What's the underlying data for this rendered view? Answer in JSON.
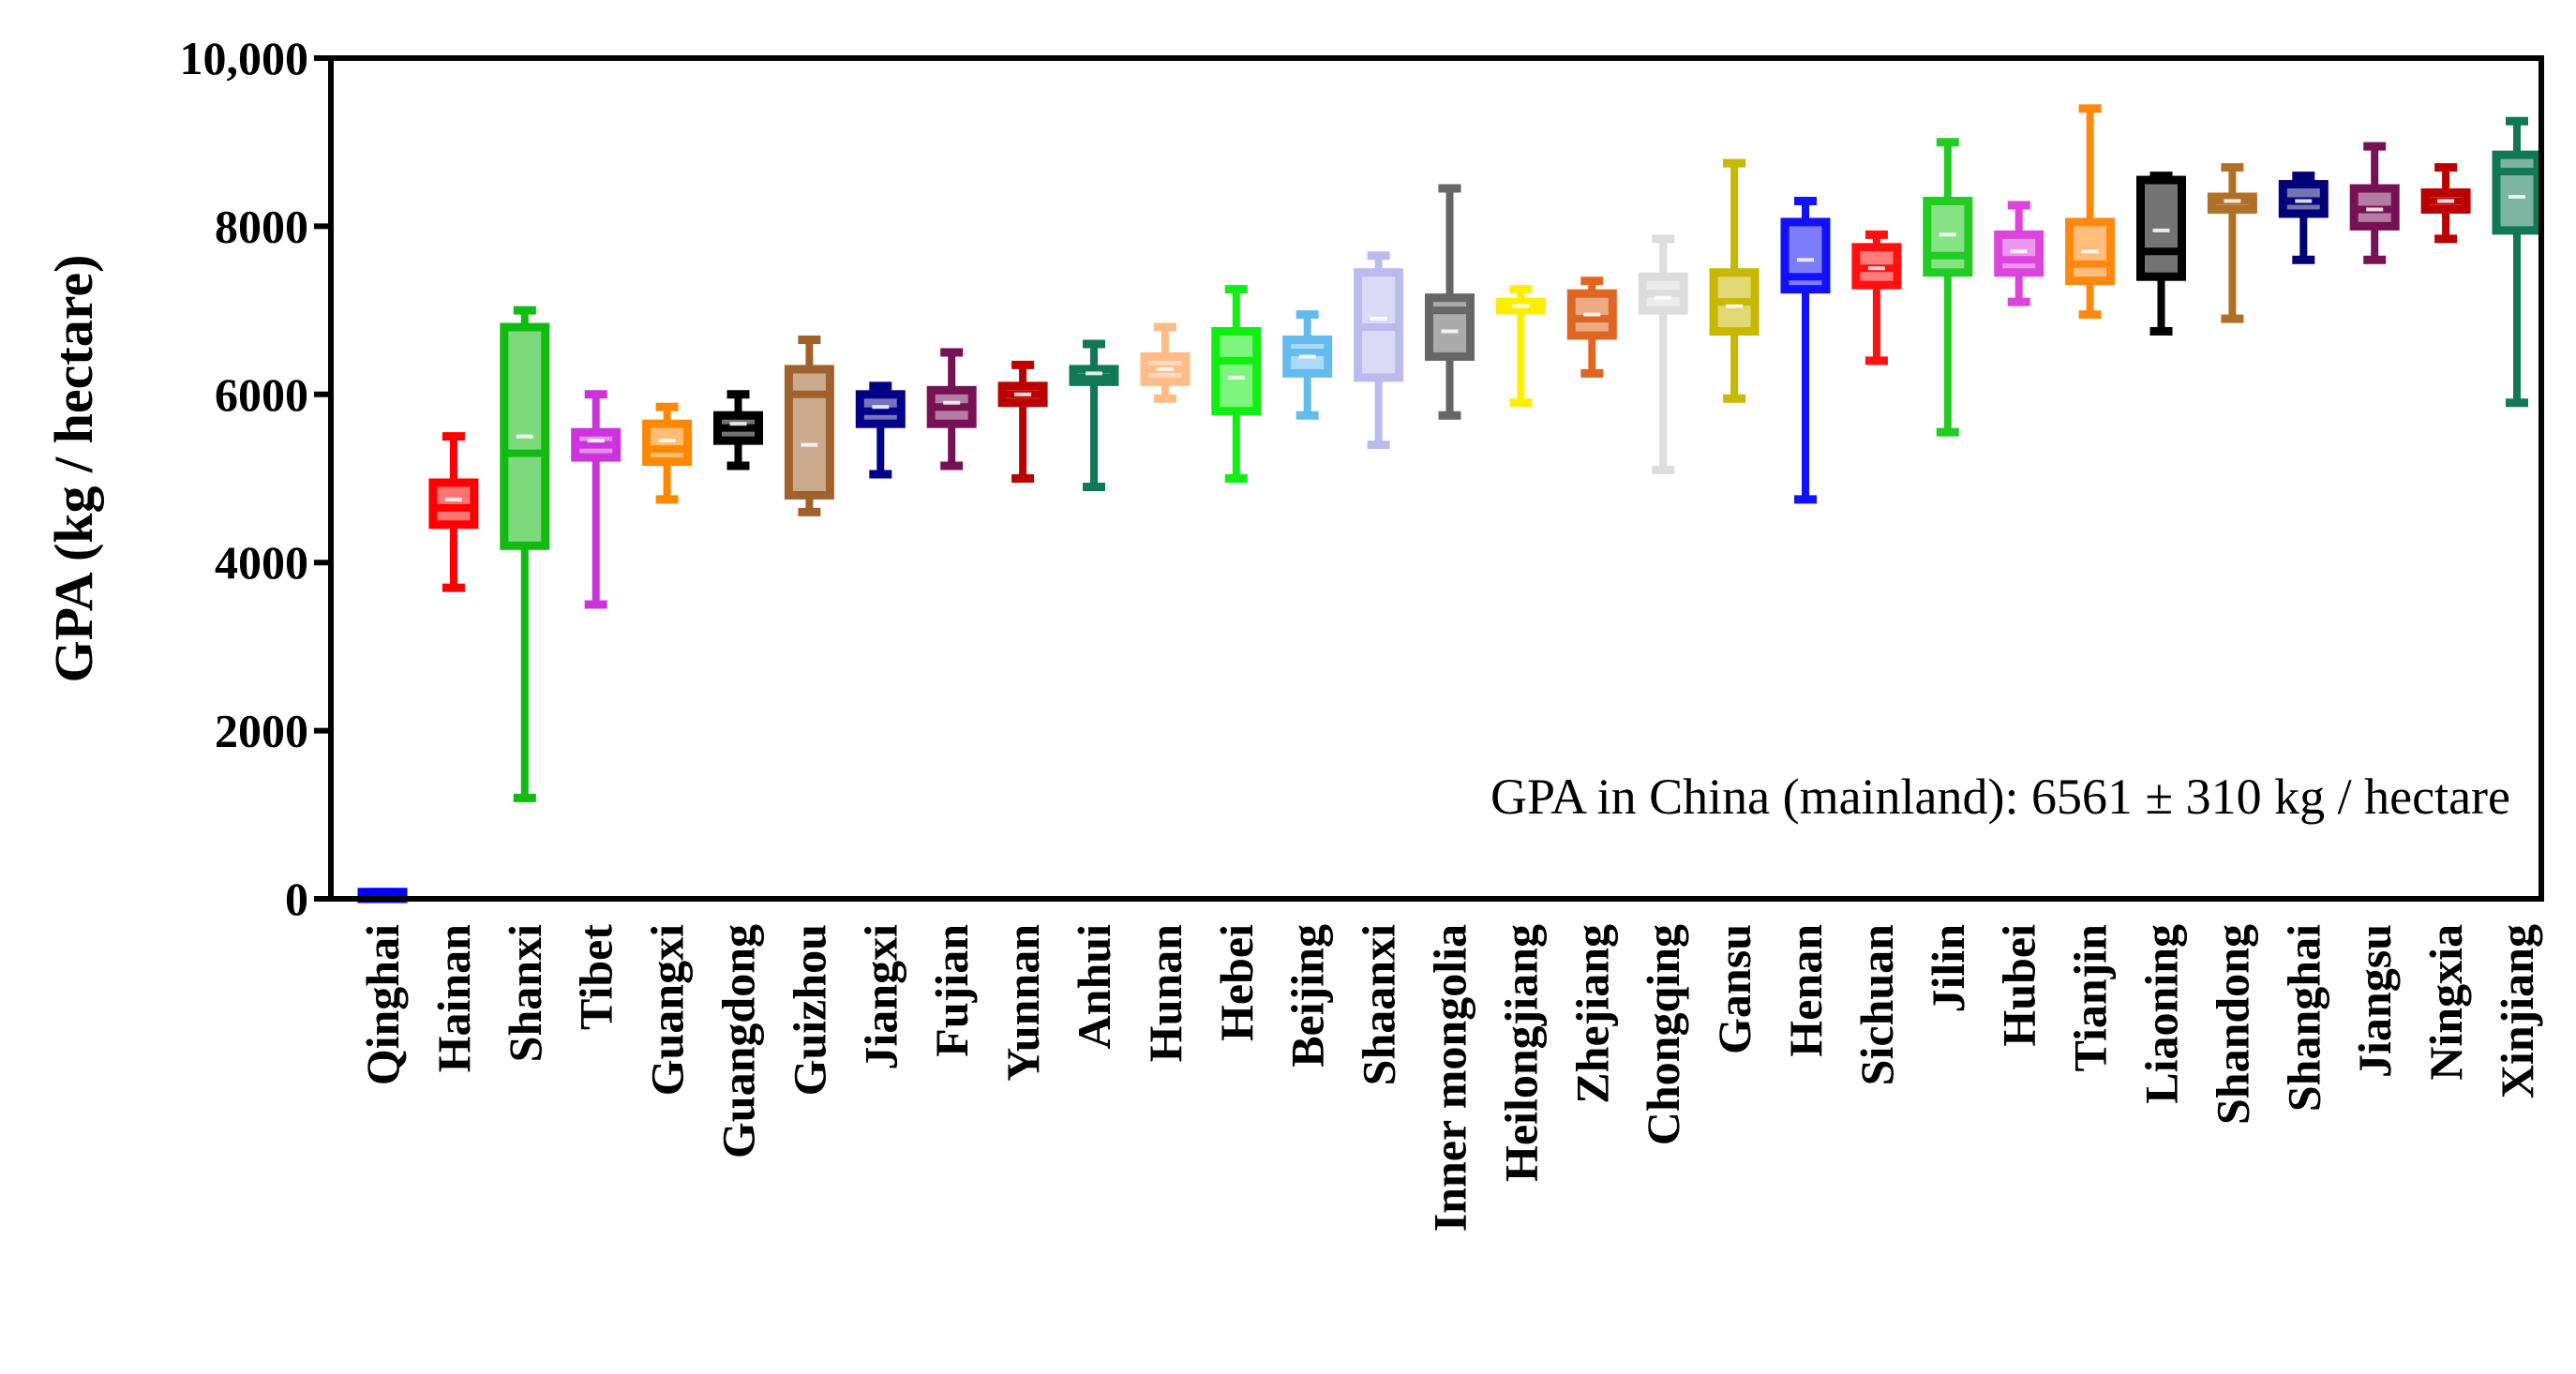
{
  "chart_data": {
    "type": "box",
    "title": "",
    "xlabel": "",
    "ylabel": "GPA (kg / hectare)",
    "ylim": [
      0,
      10000
    ],
    "yticks": [
      {
        "value": 0,
        "label": "0"
      },
      {
        "value": 2000,
        "label": "2000"
      },
      {
        "value": 4000,
        "label": "4000"
      },
      {
        "value": 6000,
        "label": "6000"
      },
      {
        "value": 8000,
        "label": "8000"
      },
      {
        "value": 10000,
        "label": "10,000"
      }
    ],
    "annotation": "GPA in China (mainland):  6561 ± 310 kg / hectare",
    "boxes": [
      {
        "name": "Qinghai",
        "color": "#0000ff",
        "min": 0,
        "q1": 0,
        "median": 0,
        "mean": 0,
        "q3": 80,
        "max": 80
      },
      {
        "name": "Hainan",
        "color": "#ff0000",
        "min": 3700,
        "q1": 4450,
        "median": 4650,
        "mean": 4750,
        "q3": 4950,
        "max": 5500
      },
      {
        "name": "Shanxi",
        "color": "#11bb11",
        "min": 1200,
        "q1": 4200,
        "median": 5300,
        "mean": 5500,
        "q3": 6800,
        "max": 7000
      },
      {
        "name": "Tibet",
        "color": "#cc33dd",
        "min": 3500,
        "q1": 5250,
        "median": 5400,
        "mean": 5450,
        "q3": 5550,
        "max": 6000
      },
      {
        "name": "Guangxi",
        "color": "#ff8800",
        "min": 4750,
        "q1": 5200,
        "median": 5350,
        "mean": 5450,
        "q3": 5650,
        "max": 5850
      },
      {
        "name": "Guangdong",
        "color": "#000000",
        "min": 5150,
        "q1": 5450,
        "median": 5600,
        "mean": 5650,
        "q3": 5750,
        "max": 6000
      },
      {
        "name": "Guizhou",
        "color": "#a0622d",
        "min": 4600,
        "q1": 4800,
        "median": 6000,
        "mean": 5400,
        "q3": 6300,
        "max": 6650
      },
      {
        "name": "Jiangxi",
        "color": "#000088",
        "min": 5050,
        "q1": 5650,
        "median": 5800,
        "mean": 5850,
        "q3": 6000,
        "max": 6100
      },
      {
        "name": "Fujian",
        "color": "#771155",
        "min": 5150,
        "q1": 5650,
        "median": 5850,
        "mean": 5900,
        "q3": 6050,
        "max": 6500
      },
      {
        "name": "Yunnan",
        "color": "#bb0000",
        "min": 5000,
        "q1": 5900,
        "median": 6000,
        "mean": 6000,
        "q3": 6100,
        "max": 6350
      },
      {
        "name": "Anhui",
        "color": "#117755",
        "min": 4900,
        "q1": 6150,
        "median": 6200,
        "mean": 6250,
        "q3": 6300,
        "max": 6600
      },
      {
        "name": "Hunan",
        "color": "#ffbb88",
        "min": 5950,
        "q1": 6150,
        "median": 6300,
        "mean": 6300,
        "q3": 6450,
        "max": 6800
      },
      {
        "name": "Hebei",
        "color": "#11ee11",
        "min": 5000,
        "q1": 5800,
        "median": 6400,
        "mean": 6200,
        "q3": 6750,
        "max": 7250
      },
      {
        "name": "Beijing",
        "color": "#66bbee",
        "min": 5750,
        "q1": 6250,
        "median": 6500,
        "mean": 6450,
        "q3": 6650,
        "max": 6950
      },
      {
        "name": "Shaanxi",
        "color": "#bbbbee",
        "min": 5400,
        "q1": 6200,
        "median": 6800,
        "mean": 6900,
        "q3": 7450,
        "max": 7650
      },
      {
        "name": "Inner mongolia",
        "color": "#666666",
        "min": 5750,
        "q1": 6450,
        "median": 7000,
        "mean": 6750,
        "q3": 7150,
        "max": 8450
      },
      {
        "name": "Heilongjiang",
        "color": "#ffee00",
        "min": 5900,
        "q1": 7000,
        "median": 7050,
        "mean": 7050,
        "q3": 7100,
        "max": 7250
      },
      {
        "name": "Zhejiang",
        "color": "#dd6622",
        "min": 6250,
        "q1": 6700,
        "median": 6900,
        "mean": 6950,
        "q3": 7200,
        "max": 7350
      },
      {
        "name": "Chongqing",
        "color": "#dddddd",
        "min": 5100,
        "q1": 7000,
        "median": 7200,
        "mean": 7150,
        "q3": 7400,
        "max": 7850
      },
      {
        "name": "Gansu",
        "color": "#c8b800",
        "min": 5950,
        "q1": 6750,
        "median": 7100,
        "mean": 7050,
        "q3": 7450,
        "max": 8750
      },
      {
        "name": "Henan",
        "color": "#1111ff",
        "min": 4750,
        "q1": 7250,
        "median": 7400,
        "mean": 7600,
        "q3": 8050,
        "max": 8300
      },
      {
        "name": "Sichuan",
        "color": "#ff1111",
        "min": 6400,
        "q1": 7300,
        "median": 7500,
        "mean": 7500,
        "q3": 7750,
        "max": 7900
      },
      {
        "name": "Jilin",
        "color": "#22cc22",
        "min": 5550,
        "q1": 7450,
        "median": 7650,
        "mean": 7900,
        "q3": 8300,
        "max": 9000
      },
      {
        "name": "Hubei",
        "color": "#dd44dd",
        "min": 7100,
        "q1": 7450,
        "median": 7600,
        "mean": 7700,
        "q3": 7900,
        "max": 8250
      },
      {
        "name": "Tianjin",
        "color": "#ff8811",
        "min": 6950,
        "q1": 7350,
        "median": 7550,
        "mean": 7700,
        "q3": 8050,
        "max": 9400
      },
      {
        "name": "Liaoning",
        "color": "#000000",
        "min": 6750,
        "q1": 7400,
        "median": 7700,
        "mean": 7950,
        "q3": 8550,
        "max": 8600
      },
      {
        "name": "Shandong",
        "color": "#b0702a",
        "min": 6900,
        "q1": 8200,
        "median": 8300,
        "mean": 8300,
        "q3": 8350,
        "max": 8700
      },
      {
        "name": "Shanghai",
        "color": "#000077",
        "min": 7600,
        "q1": 8150,
        "median": 8300,
        "mean": 8300,
        "q3": 8500,
        "max": 8600
      },
      {
        "name": "Jiangsu",
        "color": "#771155",
        "min": 7600,
        "q1": 8000,
        "median": 8200,
        "mean": 8200,
        "q3": 8450,
        "max": 8950
      },
      {
        "name": "Ningxia",
        "color": "#bb0000",
        "min": 7850,
        "q1": 8200,
        "median": 8300,
        "mean": 8300,
        "q3": 8400,
        "max": 8700
      },
      {
        "name": "Xinjiang",
        "color": "#117755",
        "min": 5900,
        "q1": 7950,
        "median": 8650,
        "mean": 8350,
        "q3": 8850,
        "max": 9250
      }
    ]
  }
}
